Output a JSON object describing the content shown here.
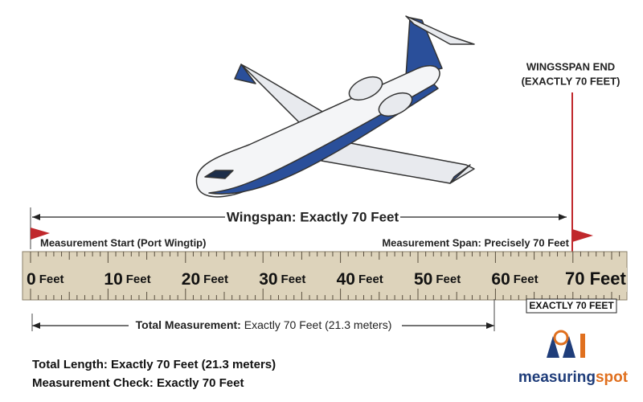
{
  "end_marker": {
    "line1": "WINGSSPAN END",
    "line2": "(EXACTLY 70 FEET)"
  },
  "wingspan_label": "Wingspan: Exactly 70 Feet",
  "start_label": "Measurement Start (Port Wingtip)",
  "span_label": "Measurement Span: Precisely 70 Feet",
  "ruler_labels": [
    {
      "number": "0",
      "unit": "Feet"
    },
    {
      "number": "10",
      "unit": "Feet"
    },
    {
      "number": "20",
      "unit": "Feet"
    },
    {
      "number": "30",
      "unit": "Feet"
    },
    {
      "number": "40",
      "unit": "Feet"
    },
    {
      "number": "50",
      "unit": "Feet"
    },
    {
      "number": "60",
      "unit": "Feet"
    }
  ],
  "end_label": "70 Feet",
  "end_box": "EXACTLY 70 FEET",
  "total_measurement": {
    "label": "Total Measurement:",
    "text": "Exactly 70 Feet (21.3 meters)"
  },
  "summary": [
    "Total Length: Exactly 70 Feet (21.3 meters)",
    "Measurement Check: Exactly 70 Feet"
  ],
  "logo": {
    "part1": "measuring",
    "part2": "spot"
  }
}
